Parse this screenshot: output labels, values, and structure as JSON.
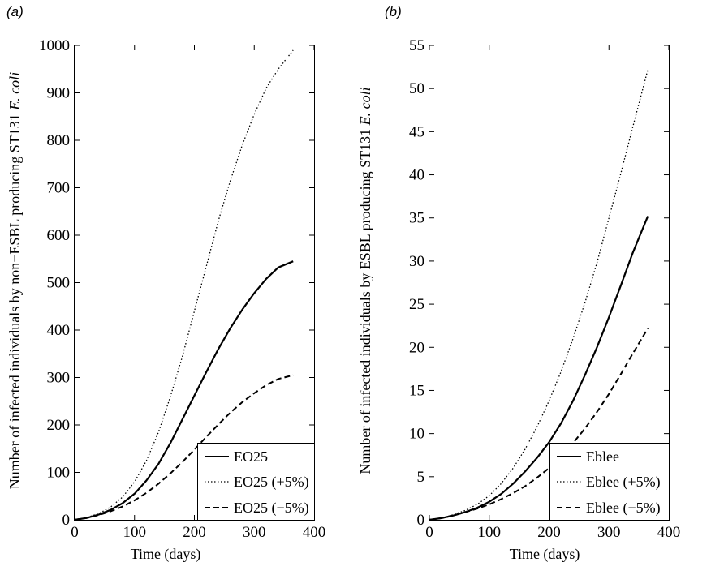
{
  "chart_data": [
    {
      "type": "line",
      "panel_label": "(a)",
      "xlabel": "Time (days)",
      "ylabel_parts": [
        "Number of infected individuals by non−ESBL producing ST131 ",
        "E. coli"
      ],
      "xlim": [
        0,
        400
      ],
      "ylim": [
        0,
        1000
      ],
      "xticks": [
        0,
        100,
        200,
        300,
        400
      ],
      "yticks": [
        0,
        100,
        200,
        300,
        400,
        500,
        600,
        700,
        800,
        900,
        1000
      ],
      "grid": false,
      "legend_position": "bottom-right",
      "x": [
        0,
        20,
        40,
        60,
        80,
        100,
        120,
        140,
        160,
        180,
        200,
        220,
        240,
        260,
        280,
        300,
        320,
        340,
        365
      ],
      "series": [
        {
          "name": "EO25",
          "style": "solid",
          "values": [
            0,
            4,
            11,
            21,
            35,
            55,
            83,
            118,
            162,
            212,
            262,
            312,
            360,
            404,
            443,
            478,
            508,
            532,
            545
          ]
        },
        {
          "name": "EO25 (+5%)",
          "style": "dotted",
          "values": [
            0,
            5,
            13,
            27,
            48,
            80,
            125,
            185,
            260,
            345,
            440,
            535,
            630,
            715,
            790,
            855,
            910,
            950,
            990
          ]
        },
        {
          "name": "EO25 (−5%)",
          "style": "dashed",
          "values": [
            0,
            4,
            10,
            18,
            28,
            41,
            57,
            76,
            98,
            122,
            148,
            175,
            201,
            226,
            248,
            267,
            284,
            297,
            305
          ]
        }
      ]
    },
    {
      "type": "line",
      "panel_label": "(b)",
      "xlabel": "Time (days)",
      "ylabel_parts": [
        "Number of infected individuals by ESBL producing ST131 ",
        "E. coli"
      ],
      "xlim": [
        0,
        400
      ],
      "ylim": [
        0,
        55
      ],
      "xticks": [
        0,
        100,
        200,
        300,
        400
      ],
      "yticks": [
        0,
        5,
        10,
        15,
        20,
        25,
        30,
        35,
        40,
        45,
        50,
        55
      ],
      "grid": false,
      "legend_position": "bottom-right",
      "x": [
        0,
        20,
        40,
        60,
        80,
        100,
        120,
        140,
        160,
        180,
        200,
        220,
        240,
        260,
        280,
        300,
        320,
        340,
        365
      ],
      "series": [
        {
          "name": "Eblee",
          "style": "solid",
          "values": [
            0,
            0.2,
            0.5,
            0.9,
            1.4,
            2.1,
            3.0,
            4.2,
            5.6,
            7.2,
            9.0,
            11.2,
            13.8,
            16.8,
            20.0,
            23.5,
            27.2,
            31.0,
            35.2
          ]
        },
        {
          "name": "Eblee (+5%)",
          "style": "dotted",
          "values": [
            0,
            0.2,
            0.6,
            1.1,
            1.8,
            2.8,
            4.2,
            6.0,
            8.2,
            10.8,
            13.8,
            17.2,
            21.0,
            25.2,
            29.8,
            35.0,
            40.2,
            45.6,
            52.2
          ]
        },
        {
          "name": "Eblee (−5%)",
          "style": "dashed",
          "values": [
            0,
            0.2,
            0.5,
            0.9,
            1.3,
            1.8,
            2.4,
            3.1,
            3.9,
            4.9,
            6.0,
            7.3,
            8.9,
            10.6,
            12.5,
            14.6,
            16.9,
            19.3,
            22.2
          ]
        }
      ]
    }
  ]
}
